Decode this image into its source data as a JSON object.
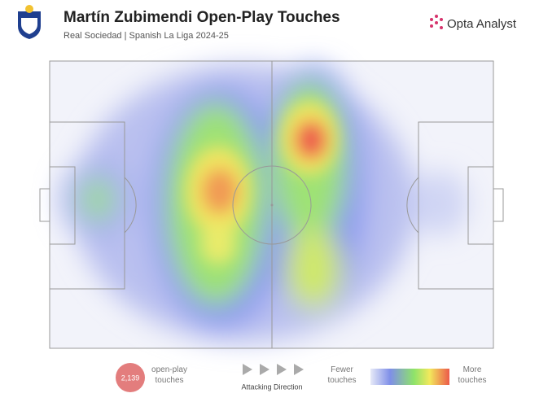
{
  "header": {
    "title": "Martín Zubimendi Open-Play Touches",
    "subtitle": "Real Sociedad | Spanish La Liga 2024-25",
    "brand": "Opta Analyst"
  },
  "footer": {
    "touches": "2,139",
    "touches_label": "open-play touches",
    "direction": "Attacking Direction",
    "scale_low": "Fewer touches",
    "scale_high": "More touches"
  }
}
